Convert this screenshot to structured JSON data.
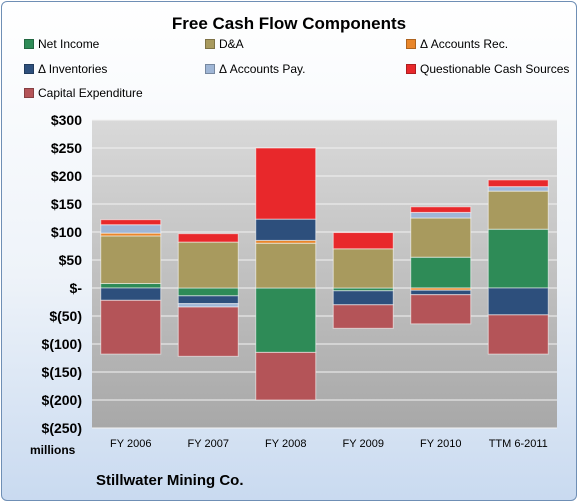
{
  "chart_data": {
    "type": "bar",
    "stacked": true,
    "title": "Free Cash Flow Components",
    "subtitle": "Stillwater Mining Co.",
    "ylabel": "millions",
    "ylim": [
      -250,
      300
    ],
    "yticks": [
      300,
      250,
      200,
      150,
      100,
      50,
      0,
      -50,
      -100,
      -150,
      -200,
      -250
    ],
    "ytick_labels": [
      "$300",
      "$250",
      "$200",
      "$150",
      "$100",
      "$50",
      "$-",
      "$(50)",
      "$(100)",
      "$(150)",
      "$(200)",
      "$(250)"
    ],
    "grid": true,
    "legend_position": "top",
    "categories": [
      "FY 2006",
      "FY 2007",
      "FY 2008",
      "FY 2009",
      "FY 2010",
      "TTM 6-2011"
    ],
    "series": [
      {
        "name": "Net Income",
        "color": "#2e8b57",
        "values": [
          8,
          -14,
          -115,
          -5,
          55,
          105
        ]
      },
      {
        "name": "D&A",
        "color": "#a89a5e",
        "values": [
          85,
          82,
          80,
          70,
          70,
          68
        ]
      },
      {
        "name": "Δ Accounts Rec.",
        "color": "#e9862a",
        "values": [
          5,
          0,
          5,
          0,
          -4,
          0
        ]
      },
      {
        "name": "Δ Inventories",
        "color": "#2d4f7c",
        "values": [
          -22,
          -14,
          38,
          -25,
          -8,
          -48
        ]
      },
      {
        "name": "Δ Accounts Pay.",
        "color": "#9fb6d6",
        "values": [
          15,
          -6,
          0,
          0,
          10,
          8
        ]
      },
      {
        "name": "Questionable Cash Sources",
        "color": "#e8282b",
        "values": [
          9,
          15,
          127,
          29,
          10,
          12
        ]
      },
      {
        "name": "Capital Expenditure",
        "color": "#b45458",
        "values": [
          -96,
          -88,
          -85,
          -42,
          -52,
          -70
        ]
      }
    ]
  }
}
